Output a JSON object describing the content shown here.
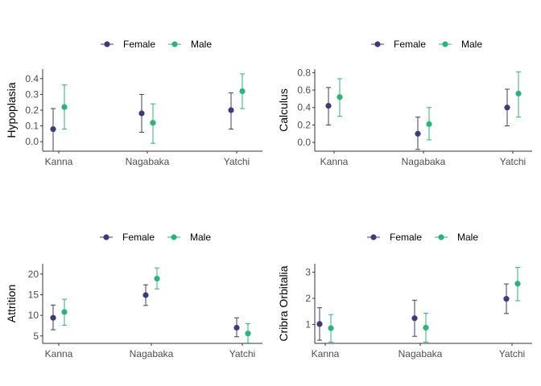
{
  "colors": {
    "Female": "#3d3b7a",
    "Male": "#2db37a",
    "axis": "#333333",
    "tick_text": "#4d4d4d"
  },
  "chart_data": [
    {
      "type": "scatter",
      "ylabel": "Hypoplasia",
      "categories": [
        "Kanna",
        "Nagabaka",
        "Yatchi"
      ],
      "yticks": [
        0.0,
        0.1,
        0.2,
        0.3,
        0.4
      ],
      "yticklabels": [
        "0.0",
        "0.1",
        "0.2",
        "0.3",
        "0.4"
      ],
      "ylim": [
        -0.06,
        0.46
      ],
      "legend": [
        "Female",
        "Male"
      ],
      "legend_position": "top",
      "grid": false,
      "series": [
        {
          "name": "Female",
          "values": [
            0.08,
            0.18,
            0.2
          ],
          "lower": [
            -0.06,
            0.06,
            0.08
          ],
          "upper": [
            0.21,
            0.3,
            0.31
          ]
        },
        {
          "name": "Male",
          "values": [
            0.22,
            0.12,
            0.32
          ],
          "lower": [
            0.08,
            -0.01,
            0.21
          ],
          "upper": [
            0.36,
            0.24,
            0.43
          ]
        }
      ]
    },
    {
      "type": "scatter",
      "ylabel": "Calculus",
      "categories": [
        "Kanna",
        "Nagabaka",
        "Yatchi"
      ],
      "yticks": [
        0.0,
        0.2,
        0.4,
        0.6,
        0.8
      ],
      "yticklabels": [
        "0.0",
        "0.2",
        "0.4",
        "0.6",
        "0.8"
      ],
      "ylim": [
        -0.1,
        0.84
      ],
      "legend": [
        "Female",
        "Male"
      ],
      "legend_position": "top",
      "grid": false,
      "series": [
        {
          "name": "Female",
          "values": [
            0.42,
            0.1,
            0.4
          ],
          "lower": [
            0.2,
            -0.08,
            0.19
          ],
          "upper": [
            0.63,
            0.29,
            0.61
          ]
        },
        {
          "name": "Male",
          "values": [
            0.52,
            0.21,
            0.56
          ],
          "lower": [
            0.3,
            0.03,
            0.29
          ],
          "upper": [
            0.73,
            0.4,
            0.81
          ]
        }
      ]
    },
    {
      "type": "scatter",
      "ylabel": "Attrition",
      "categories": [
        "Kanna",
        "Nagabaka",
        "Yatchi"
      ],
      "yticks": [
        5,
        10,
        15,
        20
      ],
      "yticklabels": [
        "5",
        "10",
        "15",
        "20"
      ],
      "ylim": [
        3.2,
        22.5
      ],
      "legend": [
        "Female",
        "Male"
      ],
      "legend_position": "top",
      "grid": false,
      "series": [
        {
          "name": "Female",
          "values": [
            9.4,
            14.9,
            7.0
          ],
          "lower": [
            6.5,
            12.4,
            4.8
          ],
          "upper": [
            12.5,
            17.4,
            9.4
          ]
        },
        {
          "name": "Male",
          "values": [
            10.8,
            18.9,
            5.6
          ],
          "lower": [
            7.6,
            16.4,
            3.3
          ],
          "upper": [
            13.9,
            21.5,
            8.0
          ]
        }
      ]
    },
    {
      "type": "scatter",
      "ylabel": "Cribra Orbitalia",
      "categories": [
        "Kanna",
        "Nagabaka",
        "Yatchi"
      ],
      "yticks": [
        1,
        2,
        3
      ],
      "yticklabels": [
        "1",
        "2",
        "3"
      ],
      "ylim": [
        0.28,
        3.32
      ],
      "legend": [
        "Female",
        "Male"
      ],
      "legend_position": "top",
      "grid": false,
      "series": [
        {
          "name": "Female",
          "values": [
            1.02,
            1.24,
            1.98
          ],
          "lower": [
            0.4,
            0.55,
            1.42
          ],
          "upper": [
            1.64,
            1.93,
            2.55
          ]
        },
        {
          "name": "Male",
          "values": [
            0.86,
            0.88,
            2.56
          ],
          "lower": [
            0.33,
            0.33,
            1.91
          ],
          "upper": [
            1.38,
            1.43,
            3.18
          ]
        }
      ]
    }
  ]
}
